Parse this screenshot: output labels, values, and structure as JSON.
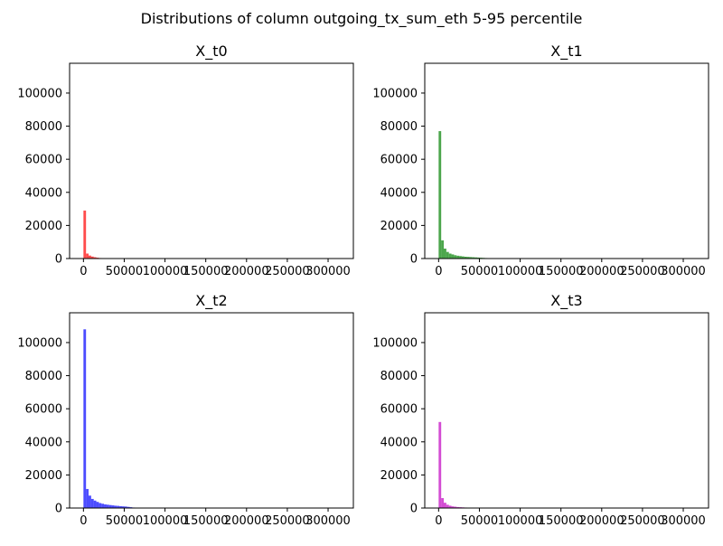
{
  "figure": {
    "title": "Distributions of column outgoing_tx_sum_eth 5-95 percentile"
  },
  "chart_data": [
    {
      "type": "bar",
      "title": "X_t0",
      "color": "#ff0000",
      "xlim": [
        -17000,
        331000
      ],
      "ylim": [
        0,
        118000
      ],
      "xticks": [
        0,
        50000,
        100000,
        150000,
        200000,
        250000,
        300000
      ],
      "yticks": [
        0,
        20000,
        40000,
        60000,
        80000,
        100000
      ],
      "bin_start": 0,
      "bin_width": 3150,
      "values": [
        29000,
        3000,
        1800,
        1200,
        800,
        500,
        300,
        200,
        120,
        80,
        60,
        40
      ]
    },
    {
      "type": "bar",
      "title": "X_t1",
      "color": "#008000",
      "xlim": [
        -17000,
        331000
      ],
      "ylim": [
        0,
        118000
      ],
      "xticks": [
        0,
        50000,
        100000,
        150000,
        200000,
        250000,
        300000
      ],
      "yticks": [
        0,
        20000,
        40000,
        60000,
        80000,
        100000
      ],
      "bin_start": 0,
      "bin_width": 3150,
      "values": [
        77000,
        11000,
        6000,
        4000,
        3000,
        2500,
        2000,
        1700,
        1500,
        1300,
        1100,
        1000,
        900,
        800,
        700,
        600,
        500,
        400,
        300,
        200,
        150,
        100
      ]
    },
    {
      "type": "bar",
      "title": "X_t2",
      "color": "#0000ff",
      "xlim": [
        -17000,
        331000
      ],
      "ylim": [
        0,
        118000
      ],
      "xticks": [
        0,
        50000,
        100000,
        150000,
        200000,
        250000,
        300000
      ],
      "yticks": [
        0,
        20000,
        40000,
        60000,
        80000,
        100000
      ],
      "bin_start": 0,
      "bin_width": 3150,
      "values": [
        108000,
        11500,
        7500,
        5500,
        4500,
        3700,
        3000,
        2600,
        2200,
        2000,
        1800,
        1600,
        1400,
        1300,
        1100,
        1000,
        900,
        700,
        500,
        300,
        200,
        100
      ]
    },
    {
      "type": "bar",
      "title": "X_t3",
      "color": "#c000c0",
      "xlim": [
        -17000,
        331000
      ],
      "ylim": [
        0,
        118000
      ],
      "xticks": [
        0,
        50000,
        100000,
        150000,
        200000,
        250000,
        300000
      ],
      "yticks": [
        0,
        20000,
        40000,
        60000,
        80000,
        100000
      ],
      "bin_start": 0,
      "bin_width": 3150,
      "values": [
        52000,
        6000,
        3200,
        2000,
        1400,
        1000,
        800,
        600,
        500,
        400,
        300,
        250,
        200,
        150,
        100,
        80,
        60
      ]
    }
  ]
}
